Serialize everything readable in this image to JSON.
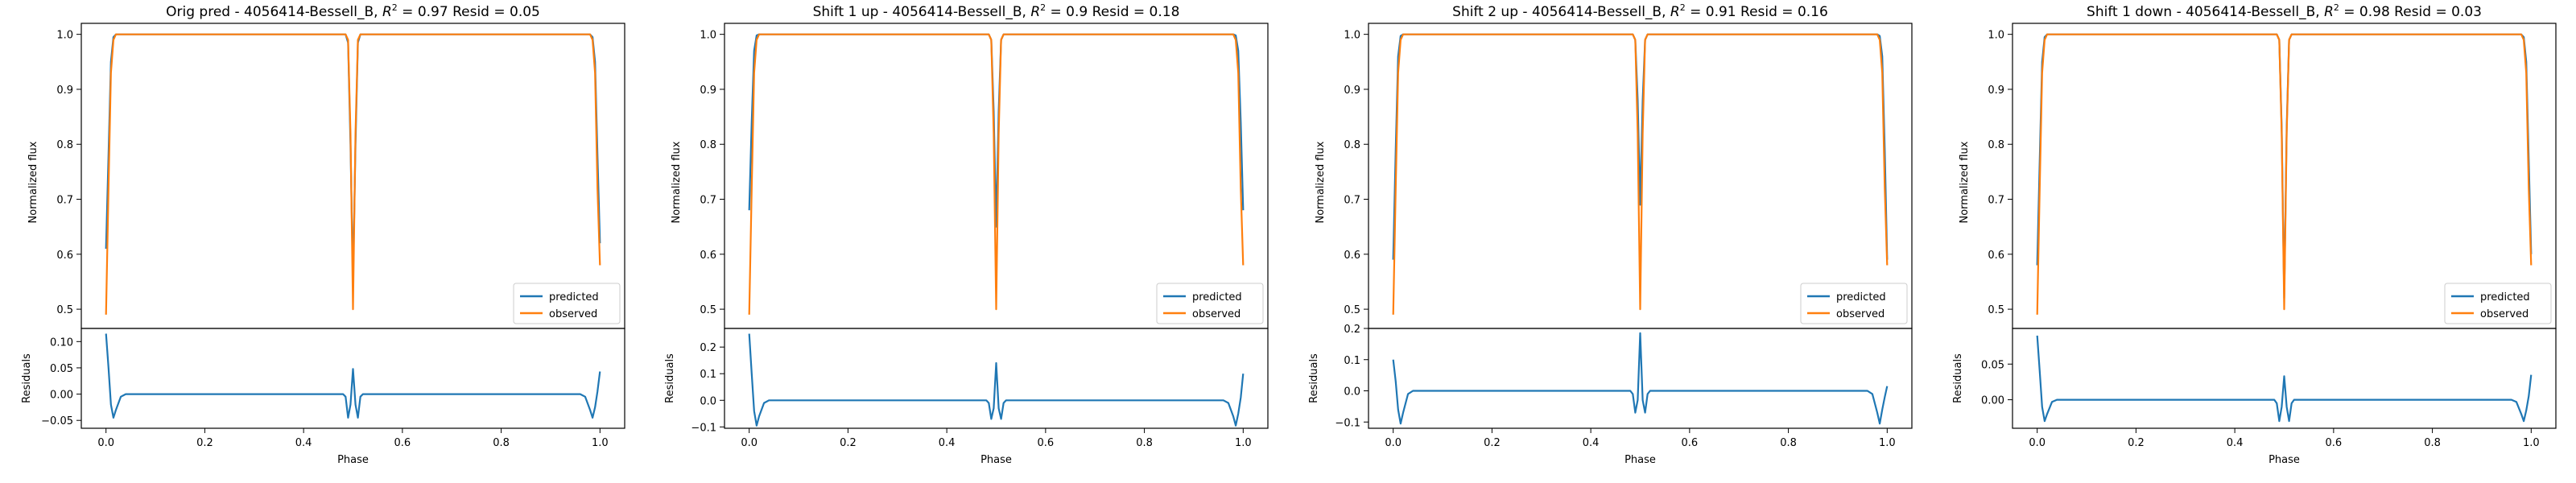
{
  "figure": {
    "colors": {
      "predicted": "#1f77b4",
      "observed": "#ff7f0e",
      "axes": "#000000",
      "background": "#ffffff"
    },
    "legend_position": "lower right"
  },
  "chart_data": [
    {
      "type": "line",
      "title_prefix": "Orig pred - 4056414-Bessell_B, ",
      "r2_symbol": "R",
      "r2_text": " = 0.97 Resid = 0.05",
      "top_ylabel": "Normalized flux",
      "bottom_ylabel": "Residuals",
      "xlabel": "Phase",
      "xlim": [
        -0.05,
        1.05
      ],
      "ylim_top": [
        0.465,
        1.02
      ],
      "yticks_top": [
        "0.5",
        "0.6",
        "0.7",
        "0.8",
        "0.9",
        "1.0"
      ],
      "ylim_bottom": [
        -0.065,
        0.125
      ],
      "yticks_bottom": [
        "−0.05",
        "0.00",
        "0.05",
        "0.10"
      ],
      "xticks": [
        "0.0",
        "0.2",
        "0.4",
        "0.6",
        "0.8",
        "1.0"
      ],
      "grid": false,
      "legend": [
        "predicted",
        "observed"
      ],
      "series": [
        {
          "name": "predicted",
          "x": [
            0,
            0.005,
            0.01,
            0.015,
            0.02,
            0.03,
            0.485,
            0.49,
            0.495,
            0.5,
            0.505,
            0.51,
            0.515,
            0.97,
            0.98,
            0.985,
            0.99,
            0.995,
            1.0
          ],
          "y": [
            0.61,
            0.78,
            0.95,
            0.995,
            1.0,
            1.0,
            1.0,
            0.985,
            0.8,
            0.55,
            0.8,
            0.985,
            1.0,
            1.0,
            1.0,
            0.995,
            0.95,
            0.78,
            0.62
          ]
        },
        {
          "name": "observed",
          "x": [
            0,
            0.005,
            0.01,
            0.015,
            0.02,
            0.03,
            0.485,
            0.49,
            0.495,
            0.5,
            0.505,
            0.51,
            0.515,
            0.97,
            0.98,
            0.985,
            0.99,
            0.995,
            1.0
          ],
          "y": [
            0.49,
            0.72,
            0.93,
            0.99,
            1.0,
            1.0,
            1.0,
            0.99,
            0.82,
            0.5,
            0.82,
            0.99,
            1.0,
            1.0,
            1.0,
            0.99,
            0.93,
            0.72,
            0.58
          ]
        },
        {
          "name": "residuals",
          "x": [
            0,
            0.005,
            0.01,
            0.015,
            0.02,
            0.03,
            0.04,
            0.48,
            0.485,
            0.49,
            0.495,
            0.5,
            0.505,
            0.51,
            0.515,
            0.52,
            0.96,
            0.97,
            0.98,
            0.985,
            0.99,
            0.995,
            1.0
          ],
          "y": [
            0.115,
            0.05,
            -0.02,
            -0.045,
            -0.03,
            -0.005,
            0,
            0,
            -0.005,
            -0.045,
            -0.02,
            0.048,
            -0.02,
            -0.045,
            -0.005,
            0,
            0,
            -0.005,
            -0.03,
            -0.045,
            -0.025,
            0.005,
            0.043
          ]
        }
      ]
    },
    {
      "type": "line",
      "title_prefix": "Shift 1 up - 4056414-Bessell_B, ",
      "r2_symbol": "R",
      "r2_text": " = 0.9 Resid = 0.18",
      "top_ylabel": "Normalized flux",
      "bottom_ylabel": "Residuals",
      "xlabel": "Phase",
      "xlim": [
        -0.05,
        1.05
      ],
      "ylim_top": [
        0.465,
        1.02
      ],
      "yticks_top": [
        "0.5",
        "0.6",
        "0.7",
        "0.8",
        "0.9",
        "1.0"
      ],
      "ylim_bottom": [
        -0.105,
        0.27
      ],
      "yticks_bottom": [
        "−0.1",
        "0.0",
        "0.1",
        "0.2"
      ],
      "xticks": [
        "0.0",
        "0.2",
        "0.4",
        "0.6",
        "0.8",
        "1.0"
      ],
      "grid": false,
      "legend": [
        "predicted",
        "observed"
      ],
      "series": [
        {
          "name": "predicted",
          "x": [
            0,
            0.005,
            0.01,
            0.015,
            0.02,
            0.03,
            0.485,
            0.49,
            0.495,
            0.5,
            0.505,
            0.51,
            0.515,
            0.97,
            0.98,
            0.985,
            0.99,
            0.995,
            1.0
          ],
          "y": [
            0.68,
            0.84,
            0.97,
            0.998,
            1.0,
            1.0,
            1.0,
            0.99,
            0.86,
            0.65,
            0.86,
            0.99,
            1.0,
            1.0,
            1.0,
            0.998,
            0.97,
            0.84,
            0.68
          ]
        },
        {
          "name": "observed",
          "x": [
            0,
            0.005,
            0.01,
            0.015,
            0.02,
            0.03,
            0.485,
            0.49,
            0.495,
            0.5,
            0.505,
            0.51,
            0.515,
            0.97,
            0.98,
            0.985,
            0.99,
            0.995,
            1.0
          ],
          "y": [
            0.49,
            0.72,
            0.93,
            0.99,
            1.0,
            1.0,
            1.0,
            0.99,
            0.82,
            0.5,
            0.82,
            0.99,
            1.0,
            1.0,
            1.0,
            0.99,
            0.93,
            0.72,
            0.58
          ]
        },
        {
          "name": "residuals",
          "x": [
            0,
            0.005,
            0.01,
            0.015,
            0.02,
            0.03,
            0.04,
            0.48,
            0.485,
            0.49,
            0.495,
            0.5,
            0.505,
            0.51,
            0.515,
            0.52,
            0.96,
            0.97,
            0.98,
            0.985,
            0.99,
            0.995,
            1.0
          ],
          "y": [
            0.25,
            0.1,
            -0.04,
            -0.095,
            -0.06,
            -0.01,
            0,
            0,
            -0.01,
            -0.07,
            -0.03,
            0.14,
            -0.03,
            -0.07,
            -0.01,
            0,
            0,
            -0.01,
            -0.06,
            -0.095,
            -0.05,
            0.01,
            0.1
          ]
        }
      ]
    },
    {
      "type": "line",
      "title_prefix": "Shift 2 up - 4056414-Bessell_B, ",
      "r2_symbol": "R",
      "r2_text": " = 0.91 Resid = 0.16",
      "top_ylabel": "Normalized flux",
      "bottom_ylabel": "Residuals",
      "xlabel": "Phase",
      "xlim": [
        -0.05,
        1.05
      ],
      "ylim_top": [
        0.465,
        1.02
      ],
      "yticks_top": [
        "0.5",
        "0.6",
        "0.7",
        "0.8",
        "0.9",
        "1.0"
      ],
      "ylim_bottom": [
        -0.12,
        0.2
      ],
      "yticks_bottom": [
        "−0.1",
        "0.0",
        "0.1",
        "0.2"
      ],
      "xticks": [
        "0.0",
        "0.2",
        "0.4",
        "0.6",
        "0.8",
        "1.0"
      ],
      "grid": false,
      "legend": [
        "predicted",
        "observed"
      ],
      "series": [
        {
          "name": "predicted",
          "x": [
            0,
            0.005,
            0.01,
            0.015,
            0.02,
            0.03,
            0.485,
            0.49,
            0.495,
            0.5,
            0.505,
            0.51,
            0.515,
            0.97,
            0.98,
            0.985,
            0.99,
            0.995,
            1.0
          ],
          "y": [
            0.59,
            0.79,
            0.96,
            0.997,
            1.0,
            1.0,
            1.0,
            0.99,
            0.88,
            0.69,
            0.88,
            0.99,
            1.0,
            1.0,
            1.0,
            0.997,
            0.96,
            0.79,
            0.59
          ]
        },
        {
          "name": "observed",
          "x": [
            0,
            0.005,
            0.01,
            0.015,
            0.02,
            0.03,
            0.485,
            0.49,
            0.495,
            0.5,
            0.505,
            0.51,
            0.515,
            0.97,
            0.98,
            0.985,
            0.99,
            0.995,
            1.0
          ],
          "y": [
            0.49,
            0.72,
            0.93,
            0.99,
            1.0,
            1.0,
            1.0,
            0.99,
            0.82,
            0.5,
            0.82,
            0.99,
            1.0,
            1.0,
            1.0,
            0.99,
            0.93,
            0.72,
            0.58
          ]
        },
        {
          "name": "residuals",
          "x": [
            0,
            0.005,
            0.01,
            0.015,
            0.02,
            0.03,
            0.04,
            0.48,
            0.485,
            0.49,
            0.495,
            0.5,
            0.505,
            0.51,
            0.515,
            0.52,
            0.96,
            0.97,
            0.98,
            0.985,
            0.99,
            0.995,
            1.0
          ],
          "y": [
            0.1,
            0.03,
            -0.06,
            -0.105,
            -0.07,
            -0.01,
            0,
            0,
            -0.01,
            -0.07,
            -0.03,
            0.185,
            -0.03,
            -0.07,
            -0.01,
            0,
            0,
            -0.01,
            -0.07,
            -0.105,
            -0.06,
            -0.02,
            0.015
          ]
        }
      ]
    },
    {
      "type": "line",
      "title_prefix": "Shift 1 down - 4056414-Bessell_B, ",
      "r2_symbol": "R",
      "r2_text": " = 0.98 Resid = 0.03",
      "top_ylabel": "Normalized flux",
      "bottom_ylabel": "Residuals",
      "xlabel": "Phase",
      "xlim": [
        -0.05,
        1.05
      ],
      "ylim_top": [
        0.465,
        1.02
      ],
      "yticks_top": [
        "0.5",
        "0.6",
        "0.7",
        "0.8",
        "0.9",
        "1.0"
      ],
      "ylim_bottom": [
        -0.04,
        0.1
      ],
      "yticks_bottom": [
        "0.00",
        "0.05"
      ],
      "xticks": [
        "0.0",
        "0.2",
        "0.4",
        "0.6",
        "0.8",
        "1.0"
      ],
      "grid": false,
      "legend": [
        "predicted",
        "observed"
      ],
      "series": [
        {
          "name": "predicted",
          "x": [
            0,
            0.005,
            0.01,
            0.015,
            0.02,
            0.03,
            0.485,
            0.49,
            0.495,
            0.5,
            0.505,
            0.51,
            0.515,
            0.97,
            0.98,
            0.985,
            0.99,
            0.995,
            1.0
          ],
          "y": [
            0.58,
            0.77,
            0.95,
            0.995,
            1.0,
            1.0,
            1.0,
            0.99,
            0.83,
            0.52,
            0.83,
            0.99,
            1.0,
            1.0,
            1.0,
            0.995,
            0.95,
            0.77,
            0.6
          ]
        },
        {
          "name": "observed",
          "x": [
            0,
            0.005,
            0.01,
            0.015,
            0.02,
            0.03,
            0.485,
            0.49,
            0.495,
            0.5,
            0.505,
            0.51,
            0.515,
            0.97,
            0.98,
            0.985,
            0.99,
            0.995,
            1.0
          ],
          "y": [
            0.49,
            0.72,
            0.93,
            0.99,
            1.0,
            1.0,
            1.0,
            0.99,
            0.82,
            0.5,
            0.82,
            0.99,
            1.0,
            1.0,
            1.0,
            0.99,
            0.93,
            0.72,
            0.58
          ]
        },
        {
          "name": "residuals",
          "x": [
            0,
            0.005,
            0.01,
            0.015,
            0.02,
            0.03,
            0.04,
            0.48,
            0.485,
            0.49,
            0.495,
            0.5,
            0.505,
            0.51,
            0.515,
            0.52,
            0.96,
            0.97,
            0.98,
            0.985,
            0.99,
            0.995,
            1.0
          ],
          "y": [
            0.09,
            0.04,
            -0.01,
            -0.03,
            -0.02,
            -0.003,
            0,
            0,
            -0.005,
            -0.03,
            -0.01,
            0.033,
            -0.01,
            -0.03,
            -0.005,
            0,
            0,
            -0.003,
            -0.02,
            -0.03,
            -0.015,
            0.005,
            0.035
          ]
        }
      ]
    }
  ]
}
